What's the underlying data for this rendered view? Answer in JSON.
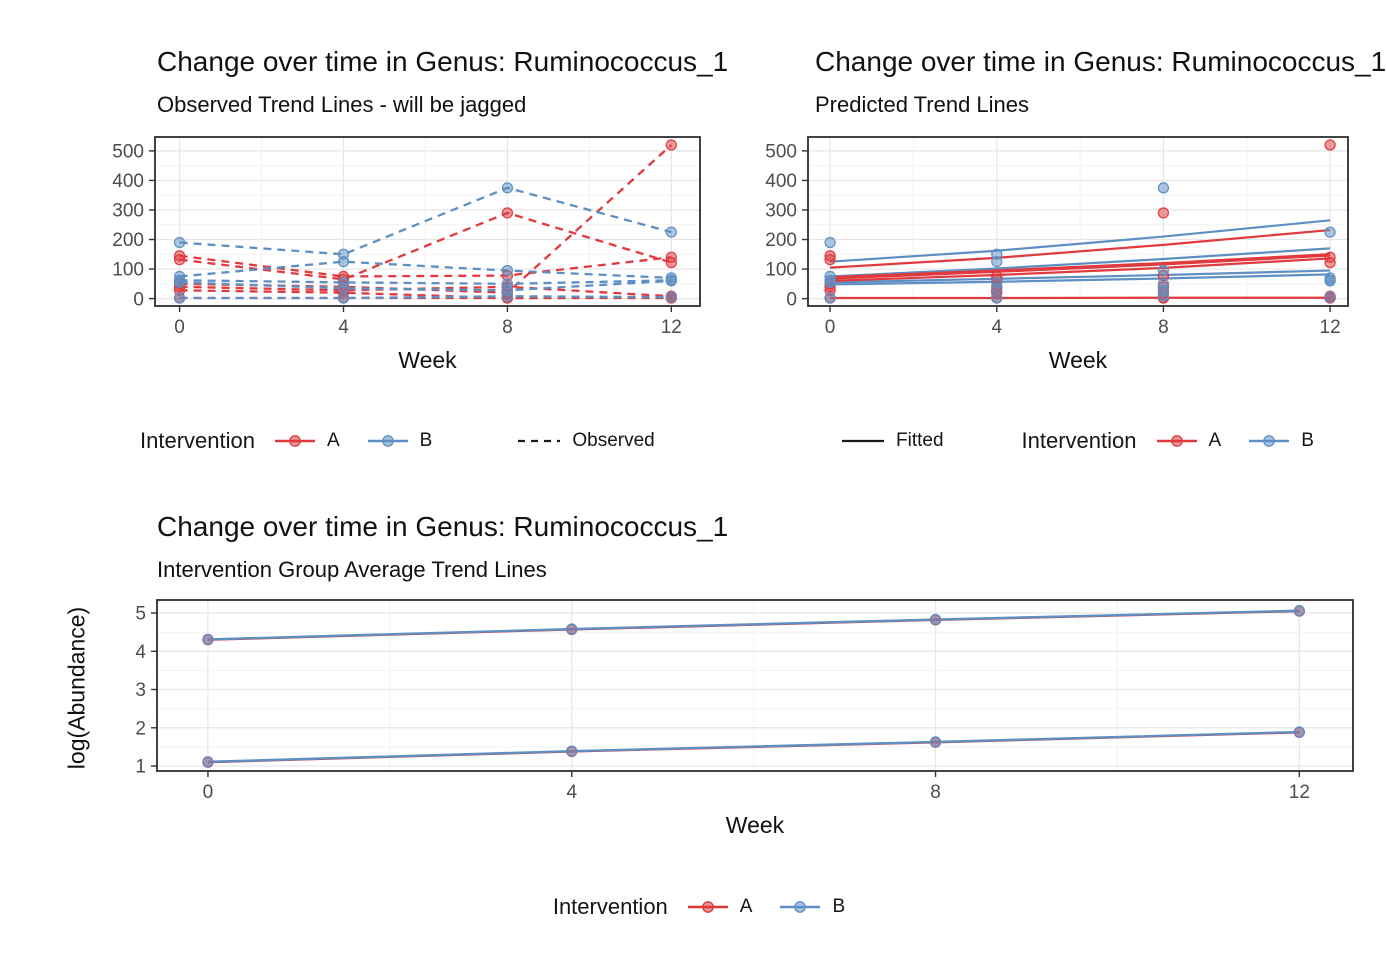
{
  "colors": {
    "intervention_a": "#e0393e",
    "intervention_b": "#5d8fc3",
    "key_neutral": "#1a1a1a",
    "grid_major": "#e6e6e6",
    "grid_minor": "#f2f2f2",
    "panel_border": "#2e2e2e",
    "tick_label": "#4d4d4d",
    "text": "#161616"
  },
  "chart_data": [
    {
      "type": "line",
      "title": "Change over time in Genus: Ruminococcus_1",
      "subtitle": "Observed Trend Lines - will be jagged",
      "xlabel": "Week",
      "ylabel": "",
      "x": [
        0,
        4,
        8,
        12
      ],
      "xticks": [
        "0",
        "4",
        "8",
        "12"
      ],
      "yticks": [
        "0",
        "100",
        "200",
        "300",
        "400",
        "500"
      ],
      "ytick_values": [
        0,
        100,
        200,
        300,
        400,
        500
      ],
      "xlim": [
        -0.6,
        12.7
      ],
      "ylim": [
        -25,
        547
      ],
      "grid": true,
      "line_style": "dashed",
      "show_points": true,
      "legend_position": "bottom",
      "legend": {
        "title": "Intervention",
        "items": [
          {
            "label": "A",
            "group": "A"
          },
          {
            "label": "B",
            "group": "B"
          }
        ],
        "extra": {
          "label": "Observed",
          "linetype": "dashed"
        }
      },
      "series": [
        {
          "name": "subject-A1",
          "group": "A",
          "values": [
            132,
            65,
            290,
            122
          ]
        },
        {
          "name": "subject-A2",
          "group": "A",
          "values": [
            145,
            75,
            78,
            140
          ]
        },
        {
          "name": "subject-A3",
          "group": "A",
          "values": [
            50,
            40,
            20,
            520
          ]
        },
        {
          "name": "subject-A4",
          "group": "A",
          "values": [
            40,
            28,
            40,
            8
          ]
        },
        {
          "name": "subject-A5",
          "group": "A",
          "values": [
            28,
            20,
            2,
            3
          ]
        },
        {
          "name": "subject-A6",
          "group": "A",
          "values": [
            2,
            2,
            2,
            2
          ]
        },
        {
          "name": "subject-B1",
          "group": "B",
          "values": [
            190,
            150,
            375,
            225
          ]
        },
        {
          "name": "subject-B2",
          "group": "B",
          "values": [
            75,
            125,
            95,
            70
          ]
        },
        {
          "name": "subject-B3",
          "group": "B",
          "values": [
            62,
            55,
            50,
            62
          ]
        },
        {
          "name": "subject-B4",
          "group": "B",
          "values": [
            55,
            35,
            28,
            60
          ]
        },
        {
          "name": "subject-B5",
          "group": "B",
          "values": [
            2,
            2,
            8,
            5
          ]
        }
      ]
    },
    {
      "type": "line",
      "title": "Change over time in Genus: Ruminococcus_1",
      "subtitle": "Predicted Trend Lines",
      "xlabel": "Week",
      "ylabel": "",
      "x": [
        0,
        4,
        8,
        12
      ],
      "xticks": [
        "0",
        "4",
        "8",
        "12"
      ],
      "yticks": [
        "0",
        "100",
        "200",
        "300",
        "400",
        "500"
      ],
      "ytick_values": [
        0,
        100,
        200,
        300,
        400,
        500
      ],
      "xlim": [
        -0.53,
        12.43
      ],
      "ylim": [
        -25,
        547
      ],
      "grid": true,
      "line_style": "solid",
      "show_points": true,
      "legend_position": "bottom",
      "legend": {
        "title": "Intervention",
        "items": [
          {
            "label": "A",
            "group": "A"
          },
          {
            "label": "B",
            "group": "B"
          }
        ],
        "extra": {
          "label": "Fitted",
          "linetype": "solid"
        }
      },
      "series": [
        {
          "name": "points-A1",
          "group": "A",
          "values": [
            132,
            65,
            290,
            122
          ],
          "points_only": true
        },
        {
          "name": "points-A2",
          "group": "A",
          "values": [
            145,
            75,
            78,
            140
          ],
          "points_only": true
        },
        {
          "name": "points-A3",
          "group": "A",
          "values": [
            50,
            40,
            20,
            520
          ],
          "points_only": true
        },
        {
          "name": "points-A4",
          "group": "A",
          "values": [
            40,
            28,
            40,
            8
          ],
          "points_only": true
        },
        {
          "name": "points-A5",
          "group": "A",
          "values": [
            28,
            20,
            2,
            3
          ],
          "points_only": true
        },
        {
          "name": "points-A6",
          "group": "A",
          "values": [
            2,
            2,
            2,
            2
          ],
          "points_only": true
        },
        {
          "name": "points-B1",
          "group": "B",
          "values": [
            190,
            150,
            375,
            225
          ],
          "points_only": true
        },
        {
          "name": "points-B2",
          "group": "B",
          "values": [
            75,
            125,
            95,
            70
          ],
          "points_only": true
        },
        {
          "name": "points-B3",
          "group": "B",
          "values": [
            62,
            55,
            50,
            62
          ],
          "points_only": true
        },
        {
          "name": "points-B4",
          "group": "B",
          "values": [
            55,
            35,
            28,
            60
          ],
          "points_only": true
        },
        {
          "name": "points-B5",
          "group": "B",
          "values": [
            2,
            2,
            8,
            5
          ],
          "points_only": true
        }
      ],
      "fits": [
        {
          "name": "fit-B1",
          "group": "B",
          "values": [
            125,
            162,
            210,
            265
          ],
          "width": 2.2
        },
        {
          "name": "fit-B2",
          "group": "B",
          "values": [
            75,
            102,
            134,
            170
          ],
          "width": 2.2
        },
        {
          "name": "fit-B3",
          "group": "B",
          "values": [
            55,
            67,
            80,
            95
          ],
          "width": 2.2
        },
        {
          "name": "fit-B4",
          "group": "B",
          "values": [
            48,
            57,
            68,
            82
          ],
          "width": 2.2
        },
        {
          "name": "fit-A1",
          "group": "A",
          "values": [
            105,
            138,
            182,
            232
          ],
          "width": 2.2
        },
        {
          "name": "fit-A2",
          "group": "A",
          "values": [
            70,
            93,
            118,
            148
          ],
          "width": 3.6
        },
        {
          "name": "fit-A3",
          "group": "A",
          "values": [
            60,
            80,
            104,
            136
          ],
          "width": 2.2
        },
        {
          "name": "fit-A4",
          "group": "A",
          "values": [
            2,
            2,
            3,
            3
          ],
          "width": 2.2
        }
      ]
    },
    {
      "type": "line",
      "title": "Change over time in Genus: Ruminococcus_1",
      "subtitle": "Intervention Group Average Trend Lines",
      "xlabel": "Week",
      "ylabel": "log(Abundance)",
      "x": [
        0,
        4,
        8,
        12
      ],
      "xticks": [
        "0",
        "4",
        "8",
        "12"
      ],
      "yticks": [
        "1",
        "2",
        "3",
        "4",
        "5"
      ],
      "ytick_values": [
        1,
        2,
        3,
        4,
        5
      ],
      "xlim": [
        -0.56,
        12.59
      ],
      "ylim": [
        0.87,
        5.34
      ],
      "grid": true,
      "line_style": "solid",
      "show_points": true,
      "legend_position": "bottom",
      "legend": {
        "title": "Intervention",
        "items": [
          {
            "label": "A",
            "group": "A"
          },
          {
            "label": "B",
            "group": "B"
          }
        ]
      },
      "series": [
        {
          "name": "upper-average-A",
          "group": "A",
          "values": [
            4.3,
            4.57,
            4.82,
            5.05
          ]
        },
        {
          "name": "upper-average-B",
          "group": "B",
          "values": [
            4.31,
            4.58,
            4.83,
            5.06
          ]
        },
        {
          "name": "lower-average-A",
          "group": "A",
          "values": [
            1.1,
            1.38,
            1.62,
            1.88
          ]
        },
        {
          "name": "lower-average-B",
          "group": "B",
          "values": [
            1.11,
            1.39,
            1.63,
            1.89
          ]
        }
      ]
    }
  ]
}
